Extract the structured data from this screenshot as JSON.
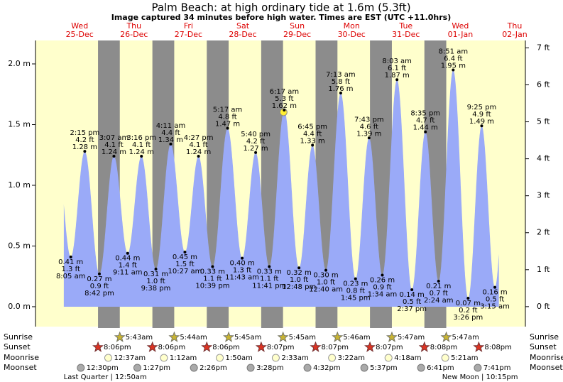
{
  "chart_data": {
    "type": "tide",
    "title": "Palm Beach: at high  ordinary tide at 1.6m (5.3ft)",
    "subtitle": "Image captured 34 minutes before high water. Times are EST (UTC +11.0hrs)",
    "ylim": [
      -0.164,
      2.193
    ],
    "yticks": [
      {
        "value": 0,
        "label": "0.0 m"
      },
      {
        "value": 0.5,
        "label": "0.5 m"
      },
      {
        "value": 1,
        "label": "1.0 m"
      },
      {
        "value": 1.5,
        "label": "1.5 m"
      },
      {
        "value": 2,
        "label": "2.0 m"
      }
    ],
    "y2lim": [
      -0.54,
      7.2
    ],
    "y2ticks": [
      {
        "value": 0,
        "label": "0 ft"
      },
      {
        "value": 1,
        "label": "1 ft"
      },
      {
        "value": 2,
        "label": "2 ft"
      },
      {
        "value": 3,
        "label": "3 ft"
      },
      {
        "value": 4,
        "label": "4 ft"
      },
      {
        "value": 5,
        "label": "5 ft"
      },
      {
        "value": 6,
        "label": "6 ft"
      },
      {
        "value": 7,
        "label": "7 ft"
      }
    ],
    "color": "#9aaaf8",
    "row_labels": {
      "sunrise": "Sunrise",
      "sunset": "Sunset",
      "moonrise": "Moonrise",
      "moonset": "Moonset"
    },
    "days": [
      {
        "weekday": "Wed",
        "date": "25-Dec",
        "tides": [
          {
            "time": "8:05 am",
            "m": 0.41,
            "m_label": "0.41 m",
            "ft_label": "1.3 ft"
          },
          {
            "time": "2:15 pm",
            "m": 1.28,
            "m_label": "1.28 m",
            "ft_label": "4.2 ft"
          },
          {
            "time": "8:42 pm",
            "m": 0.27,
            "m_label": "0.27 m",
            "ft_label": "0.9 ft"
          }
        ],
        "sunset": "8:06pm",
        "moonset": "12:30pm"
      },
      {
        "weekday": "Thu",
        "date": "26-Dec",
        "tides": [
          {
            "time": "3:07 am",
            "m": 1.24,
            "m_label": "1.24 m",
            "ft_label": "4.1 ft"
          },
          {
            "time": "9:11 am",
            "m": 0.44,
            "m_label": "0.44 m",
            "ft_label": "1.4 ft"
          },
          {
            "time": "3:16 pm",
            "m": 1.24,
            "m_label": "1.24 m",
            "ft_label": "4.1 ft"
          },
          {
            "time": "9:38 pm",
            "m": 0.31,
            "m_label": "0.31 m",
            "ft_label": "1.0 ft"
          }
        ],
        "sunrise": "5:43am",
        "sunset": "8:06pm",
        "moonrise": "12:37am",
        "moonset": "1:27pm",
        "moon_phase": "Last Quarter | 12:50am"
      },
      {
        "weekday": "Fri",
        "date": "27-Dec",
        "tides": [
          {
            "time": "4:11 am",
            "m": 1.34,
            "m_label": "1.34 m",
            "ft_label": "4.4 ft"
          },
          {
            "time": "10:27 am",
            "m": 0.45,
            "m_label": "0.45 m",
            "ft_label": "1.5 ft"
          },
          {
            "time": "4:27 pm",
            "m": 1.24,
            "m_label": "1.24 m",
            "ft_label": "4.1 ft"
          },
          {
            "time": "10:39 pm",
            "m": 0.33,
            "m_label": "0.33 m",
            "ft_label": "1.1 ft"
          }
        ],
        "sunrise": "5:44am",
        "sunset": "8:06pm",
        "moonrise": "1:12am",
        "moonset": "2:26pm"
      },
      {
        "weekday": "Sat",
        "date": "28-Dec",
        "tides": [
          {
            "time": "5:17 am",
            "m": 1.47,
            "m_label": "1.47 m",
            "ft_label": "4.8 ft"
          },
          {
            "time": "11:43 am",
            "m": 0.4,
            "m_label": "0.40 m",
            "ft_label": "1.3 ft"
          },
          {
            "time": "5:40 pm",
            "m": 1.27,
            "m_label": "1.27 m",
            "ft_label": "4.2 ft"
          },
          {
            "time": "11:41 pm",
            "m": 0.33,
            "m_label": "0.33 m",
            "ft_label": "1.1 ft"
          }
        ],
        "sunrise": "5:45am",
        "sunset": "8:07pm",
        "moonrise": "1:50am",
        "moonset": "3:28pm"
      },
      {
        "weekday": "Sun",
        "date": "29-Dec",
        "tides": [
          {
            "time": "6:17 am",
            "m": 1.62,
            "m_label": "1.62 m",
            "ft_label": "5.3 ft",
            "highlight": true
          },
          {
            "time": "12:48 pm",
            "m": 0.32,
            "m_label": "0.32 m",
            "ft_label": "1.0 ft"
          },
          {
            "time": "6:45 pm",
            "m": 1.33,
            "m_label": "1.33 m",
            "ft_label": "4.4 ft"
          }
        ],
        "sunrise": "5:45am",
        "sunset": "8:07pm",
        "moonrise": "2:33am",
        "moonset": "4:32pm"
      },
      {
        "weekday": "Mon",
        "date": "30-Dec",
        "tides": [
          {
            "time": "12:40 am",
            "m": 0.3,
            "m_label": "0.30 m",
            "ft_label": "1.0 ft"
          },
          {
            "time": "7:13 am",
            "m": 1.76,
            "m_label": "1.76 m",
            "ft_label": "5.8 ft"
          },
          {
            "time": "1:45 pm",
            "m": 0.23,
            "m_label": "0.23 m",
            "ft_label": "0.8 ft"
          },
          {
            "time": "7:43 pm",
            "m": 1.39,
            "m_label": "1.39 m",
            "ft_label": "4.6 ft"
          }
        ],
        "sunrise": "5:46am",
        "sunset": "8:07pm",
        "moonrise": "3:22am",
        "moonset": "5:37pm"
      },
      {
        "weekday": "Tue",
        "date": "31-Dec",
        "tides": [
          {
            "time": "1:34 am",
            "m": 0.26,
            "m_label": "0.26 m",
            "ft_label": "0.9 ft"
          },
          {
            "time": "8:03 am",
            "m": 1.87,
            "m_label": "1.87 m",
            "ft_label": "6.1 ft"
          },
          {
            "time": "2:37 pm",
            "m": 0.14,
            "m_label": "0.14 m",
            "ft_label": "0.5 ft"
          },
          {
            "time": "8:35 pm",
            "m": 1.44,
            "m_label": "1.44 m",
            "ft_label": "4.7 ft"
          }
        ],
        "sunrise": "5:47am",
        "sunset": "8:08pm",
        "moonrise": "4:18am",
        "moonset": "6:41pm"
      },
      {
        "weekday": "Wed",
        "date": "01-Jan",
        "tides": [
          {
            "time": "2:24 am",
            "m": 0.21,
            "m_label": "0.21 m",
            "ft_label": "0.7 ft"
          },
          {
            "time": "8:51 am",
            "m": 1.95,
            "m_label": "1.95 m",
            "ft_label": "6.4 ft"
          },
          {
            "time": "3:26 pm",
            "m": 0.07,
            "m_label": "0.07 m",
            "ft_label": "0.2 ft"
          },
          {
            "time": "9:25 pm",
            "m": 1.49,
            "m_label": "1.49 m",
            "ft_label": "4.9 ft"
          }
        ],
        "sunrise": "5:47am",
        "sunset": "8:08pm",
        "moonrise": "5:21am",
        "moonset": "7:41pm",
        "moon_phase": "New Moon | 10:15pm"
      },
      {
        "weekday": "Thu",
        "date": "02-Jan",
        "tides": [
          {
            "time": "3:15 am",
            "m": 0.16,
            "m_label": "0.16 m",
            "ft_label": "0.5 ft"
          }
        ]
      }
    ]
  }
}
